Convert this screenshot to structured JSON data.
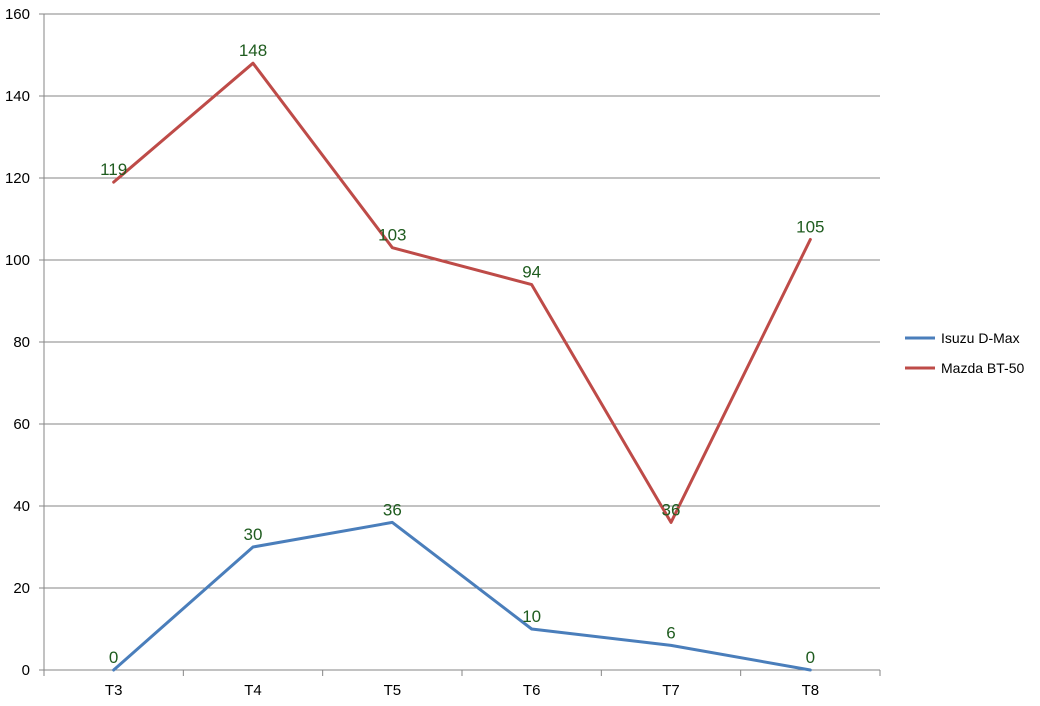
{
  "chart_data": {
    "type": "line",
    "categories": [
      "T3",
      "T4",
      "T5",
      "T6",
      "T7",
      "T8"
    ],
    "series": [
      {
        "name": "Isuzu D-Max",
        "values": [
          0,
          30,
          36,
          10,
          6,
          0
        ],
        "color": "#4a7ebb"
      },
      {
        "name": "Mazda BT-50",
        "values": [
          119,
          148,
          103,
          94,
          36,
          105
        ],
        "color": "#be4b48"
      }
    ],
    "ylim": [
      0,
      160
    ],
    "yticks": [
      0,
      20,
      40,
      60,
      80,
      100,
      120,
      140,
      160
    ],
    "grid": true,
    "legend": "right",
    "data_label_color": "#1f5c1f",
    "title": "",
    "xlabel": "",
    "ylabel": ""
  }
}
